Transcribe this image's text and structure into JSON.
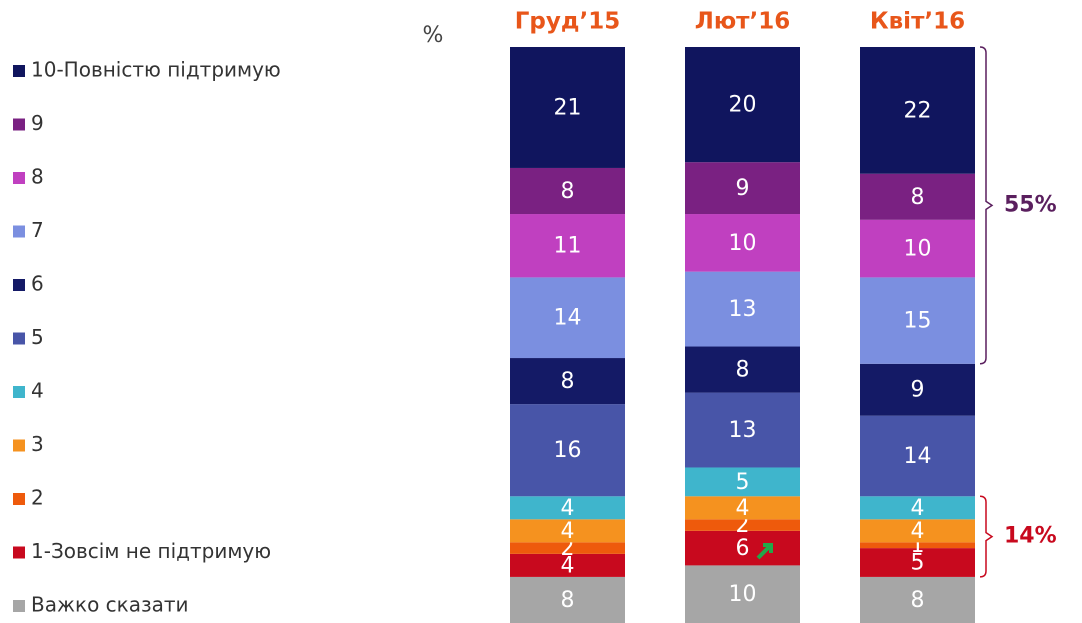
{
  "chart_data": {
    "type": "stacked_bar",
    "unit_label": "%",
    "categories": [
      "Груд’15",
      "Лют’16",
      "Квіт’16"
    ],
    "series": [
      {
        "name": "10-Повністю підтримую",
        "color": "#10155e",
        "values": [
          21,
          20,
          22
        ]
      },
      {
        "name": "9",
        "color": "#7a2182",
        "values": [
          8,
          9,
          8
        ]
      },
      {
        "name": "8",
        "color": "#c040c0",
        "values": [
          11,
          10,
          10
        ]
      },
      {
        "name": "7",
        "color": "#7b8fe0",
        "values": [
          14,
          13,
          15
        ]
      },
      {
        "name": "6",
        "color": "#141a66",
        "values": [
          8,
          8,
          9
        ]
      },
      {
        "name": "5",
        "color": "#4855a8",
        "values": [
          16,
          13,
          14
        ]
      },
      {
        "name": "4",
        "color": "#3fb5cc",
        "values": [
          4,
          5,
          4
        ]
      },
      {
        "name": "3",
        "color": "#f5921f",
        "values": [
          4,
          4,
          4
        ]
      },
      {
        "name": "2",
        "color": "#ee5a0c",
        "values": [
          2,
          2,
          1
        ]
      },
      {
        "name": "1-Зовсім не підтримую",
        "color": "#c8091e",
        "values": [
          4,
          6,
          5
        ]
      },
      {
        "name": "Важко сказати",
        "color": "#a6a6a6",
        "values": [
          8,
          10,
          8
        ]
      }
    ],
    "ylim": [
      0,
      100
    ],
    "annotations": [
      "55%",
      "14%"
    ]
  }
}
